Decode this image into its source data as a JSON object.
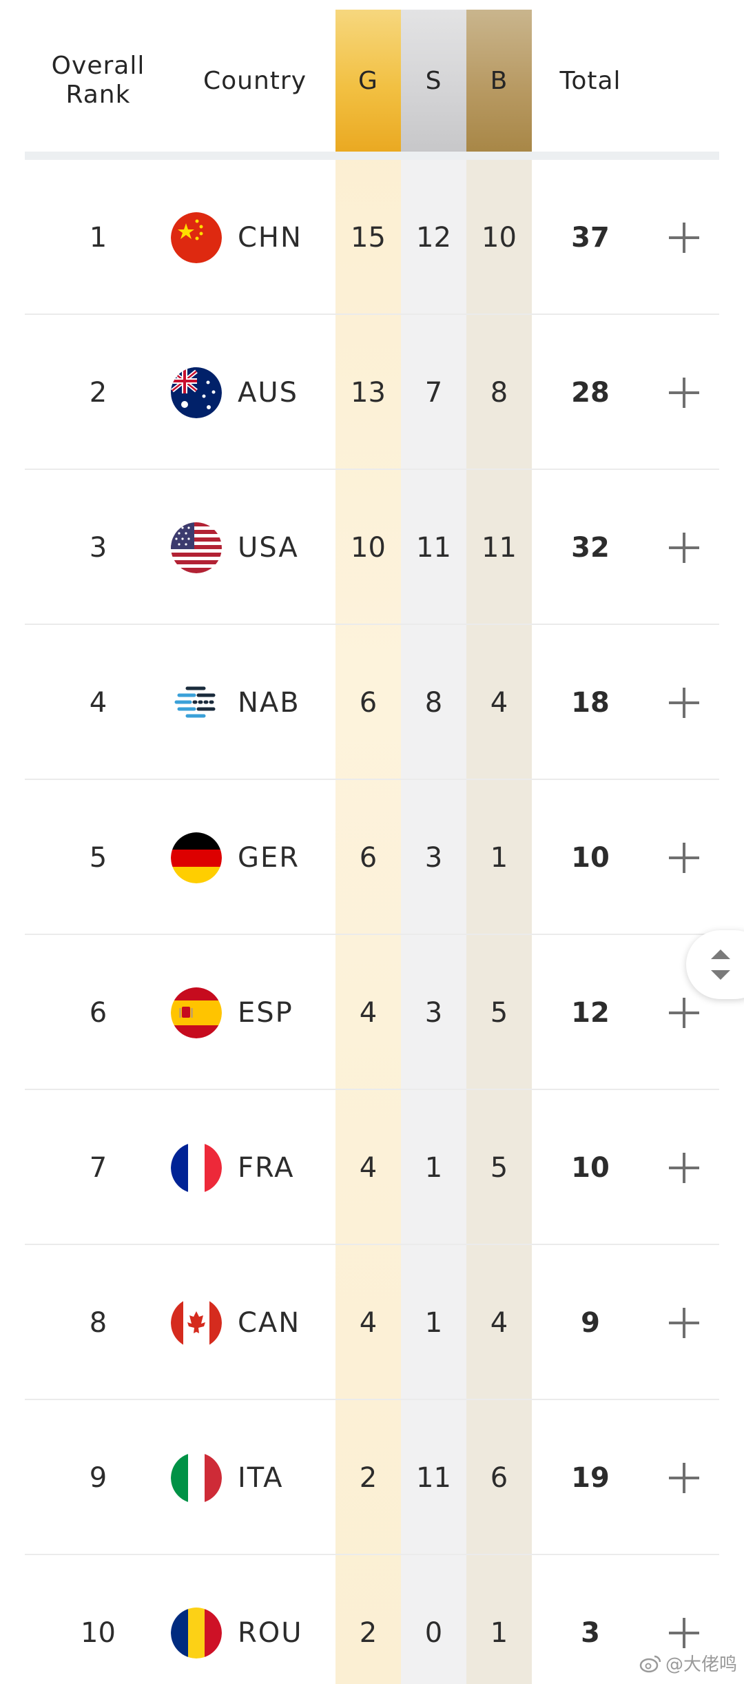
{
  "header": {
    "rank_label_line1": "Overall",
    "rank_label_line2": "Rank",
    "country_label": "Country",
    "gold_label": "G",
    "silver_label": "S",
    "bronze_label": "B",
    "total_label": "Total"
  },
  "colors": {
    "gold": "#f2c042",
    "silver": "#d3d3d5",
    "bronze": "#b89a63"
  },
  "rows": [
    {
      "rank": "1",
      "code": "CHN",
      "flag": "china-flag-icon",
      "g": "15",
      "s": "12",
      "b": "10",
      "total": "37"
    },
    {
      "rank": "2",
      "code": "AUS",
      "flag": "australia-flag-icon",
      "g": "13",
      "s": "7",
      "b": "8",
      "total": "28"
    },
    {
      "rank": "3",
      "code": "USA",
      "flag": "usa-flag-icon",
      "g": "10",
      "s": "11",
      "b": "11",
      "total": "32"
    },
    {
      "rank": "4",
      "code": "NAB",
      "flag": "nab-logo-icon",
      "g": "6",
      "s": "8",
      "b": "4",
      "total": "18"
    },
    {
      "rank": "5",
      "code": "GER",
      "flag": "germany-flag-icon",
      "g": "6",
      "s": "3",
      "b": "1",
      "total": "10"
    },
    {
      "rank": "6",
      "code": "ESP",
      "flag": "spain-flag-icon",
      "g": "4",
      "s": "3",
      "b": "5",
      "total": "12"
    },
    {
      "rank": "7",
      "code": "FRA",
      "flag": "france-flag-icon",
      "g": "4",
      "s": "1",
      "b": "5",
      "total": "10"
    },
    {
      "rank": "8",
      "code": "CAN",
      "flag": "canada-flag-icon",
      "g": "4",
      "s": "1",
      "b": "4",
      "total": "9"
    },
    {
      "rank": "9",
      "code": "ITA",
      "flag": "italy-flag-icon",
      "g": "2",
      "s": "11",
      "b": "6",
      "total": "19"
    },
    {
      "rank": "10",
      "code": "ROU",
      "flag": "romania-flag-icon",
      "g": "2",
      "s": "0",
      "b": "1",
      "total": "3"
    }
  ],
  "watermark": {
    "text": "@大佬鸣"
  }
}
